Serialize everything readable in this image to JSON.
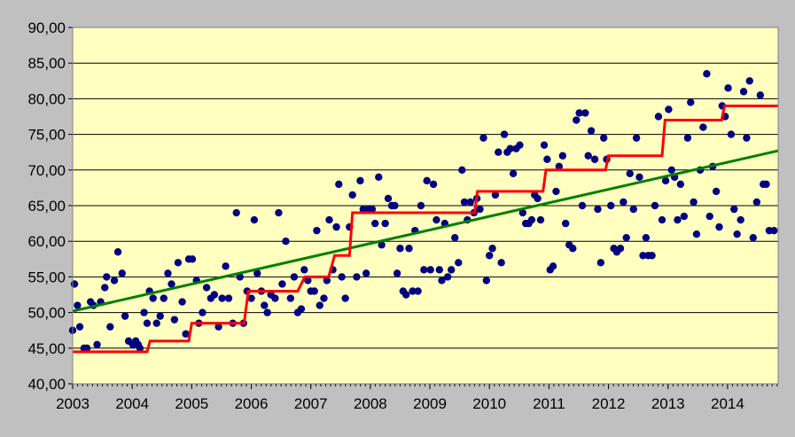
{
  "chart_data": {
    "type": "scatter",
    "title": "",
    "xlabel": "",
    "ylabel": "",
    "xlim": [
      2003.0,
      2014.85
    ],
    "ylim": [
      40,
      90
    ],
    "y_ticks": [
      "40,00",
      "45,00",
      "50,00",
      "55,00",
      "60,00",
      "65,00",
      "70,00",
      "75,00",
      "80,00",
      "85,00",
      "90,00"
    ],
    "x_ticks": [
      {
        "value": 2003,
        "label": "2003"
      },
      {
        "value": 2004,
        "label": "2004"
      },
      {
        "value": 2005,
        "label": "2005"
      },
      {
        "value": 2006,
        "label": "2006"
      },
      {
        "value": 2007,
        "label": "2007"
      },
      {
        "value": 2008,
        "label": "2008"
      },
      {
        "value": 2009,
        "label": "2009"
      },
      {
        "value": 2010,
        "label": "2010"
      },
      {
        "value": 2011,
        "label": "2011"
      },
      {
        "value": 2012,
        "label": "2012"
      },
      {
        "value": 2013,
        "label": "2013"
      },
      {
        "value": 2014,
        "label": "2014"
      }
    ],
    "grid": {
      "horizontal": true,
      "vertical": false
    },
    "legend": "none",
    "colors": {
      "plot_background": "#ffffc0",
      "points": "#000080",
      "trend": "#008000",
      "step": "#ff0000",
      "gridline": "#000000",
      "outer_background": "#c0c0c0"
    },
    "series": [
      {
        "kind": "points",
        "points": [
          [
            2003.0,
            47.5
          ],
          [
            2003.03,
            54.0
          ],
          [
            2003.08,
            51.0
          ],
          [
            2003.12,
            48.0
          ],
          [
            2003.19,
            45.0
          ],
          [
            2003.24,
            45.0
          ],
          [
            2003.3,
            51.5
          ],
          [
            2003.35,
            51.0
          ],
          [
            2003.41,
            45.5
          ],
          [
            2003.47,
            51.5
          ],
          [
            2003.54,
            53.5
          ],
          [
            2003.57,
            55.0
          ],
          [
            2003.63,
            48.0
          ],
          [
            2003.7,
            54.5
          ],
          [
            2003.76,
            58.5
          ],
          [
            2003.83,
            55.5
          ],
          [
            2003.88,
            49.5
          ],
          [
            2003.94,
            46.0
          ],
          [
            2004.01,
            45.5
          ],
          [
            2004.06,
            46.0
          ],
          [
            2004.1,
            45.5
          ],
          [
            2004.13,
            45.0
          ],
          [
            2004.2,
            50.0
          ],
          [
            2004.25,
            48.5
          ],
          [
            2004.29,
            53.0
          ],
          [
            2004.35,
            52.0
          ],
          [
            2004.41,
            48.5
          ],
          [
            2004.47,
            49.5
          ],
          [
            2004.53,
            52.0
          ],
          [
            2004.6,
            55.5
          ],
          [
            2004.66,
            54.0
          ],
          [
            2004.71,
            49.0
          ],
          [
            2004.77,
            57.0
          ],
          [
            2004.84,
            51.5
          ],
          [
            2004.9,
            47.0
          ],
          [
            2004.95,
            57.5
          ],
          [
            2005.01,
            57.5
          ],
          [
            2005.08,
            54.5
          ],
          [
            2005.12,
            48.5
          ],
          [
            2005.18,
            50.0
          ],
          [
            2005.25,
            53.5
          ],
          [
            2005.32,
            52.0
          ],
          [
            2005.38,
            52.5
          ],
          [
            2005.45,
            48.0
          ],
          [
            2005.51,
            52.0
          ],
          [
            2005.57,
            56.5
          ],
          [
            2005.62,
            52.0
          ],
          [
            2005.69,
            48.5
          ],
          [
            2005.75,
            64.0
          ],
          [
            2005.81,
            55.0
          ],
          [
            2005.87,
            48.5
          ],
          [
            2005.93,
            53.0
          ],
          [
            2006.0,
            52.0
          ],
          [
            2006.05,
            63.0
          ],
          [
            2006.1,
            55.5
          ],
          [
            2006.17,
            53.0
          ],
          [
            2006.22,
            51.0
          ],
          [
            2006.27,
            50.0
          ],
          [
            2006.33,
            52.5
          ],
          [
            2006.4,
            52.0
          ],
          [
            2006.46,
            64.0
          ],
          [
            2006.52,
            54.0
          ],
          [
            2006.58,
            60.0
          ],
          [
            2006.66,
            52.0
          ],
          [
            2006.72,
            55.0
          ],
          [
            2006.78,
            50.0
          ],
          [
            2006.84,
            50.5
          ],
          [
            2006.89,
            56.0
          ],
          [
            2006.95,
            54.5
          ],
          [
            2007.0,
            53.0
          ],
          [
            2007.06,
            53.0
          ],
          [
            2007.1,
            61.5
          ],
          [
            2007.15,
            51.0
          ],
          [
            2007.22,
            52.0
          ],
          [
            2007.27,
            54.5
          ],
          [
            2007.31,
            63.0
          ],
          [
            2007.37,
            56.0
          ],
          [
            2007.43,
            62.0
          ],
          [
            2007.47,
            68.0
          ],
          [
            2007.52,
            55.0
          ],
          [
            2007.58,
            52.0
          ],
          [
            2007.65,
            62.0
          ],
          [
            2007.7,
            66.5
          ],
          [
            2007.77,
            55.0
          ],
          [
            2007.83,
            68.5
          ],
          [
            2007.88,
            64.5
          ],
          [
            2007.93,
            55.5
          ],
          [
            2007.97,
            64.5
          ],
          [
            2008.03,
            64.5
          ],
          [
            2008.08,
            62.5
          ],
          [
            2008.14,
            69.0
          ],
          [
            2008.19,
            59.5
          ],
          [
            2008.25,
            62.5
          ],
          [
            2008.3,
            66.0
          ],
          [
            2008.36,
            65.0
          ],
          [
            2008.41,
            65.0
          ],
          [
            2008.45,
            55.5
          ],
          [
            2008.5,
            59.0
          ],
          [
            2008.55,
            53.0
          ],
          [
            2008.6,
            52.5
          ],
          [
            2008.65,
            59.0
          ],
          [
            2008.71,
            53.0
          ],
          [
            2008.75,
            61.5
          ],
          [
            2008.8,
            53.0
          ],
          [
            2008.85,
            65.0
          ],
          [
            2008.9,
            56.0
          ],
          [
            2008.95,
            68.5
          ],
          [
            2009.01,
            56.0
          ],
          [
            2009.06,
            68.0
          ],
          [
            2009.11,
            63.0
          ],
          [
            2009.16,
            56.0
          ],
          [
            2009.2,
            54.5
          ],
          [
            2009.25,
            62.5
          ],
          [
            2009.3,
            55.0
          ],
          [
            2009.36,
            56.0
          ],
          [
            2009.42,
            60.5
          ],
          [
            2009.48,
            57.0
          ],
          [
            2009.54,
            70.0
          ],
          [
            2009.58,
            65.5
          ],
          [
            2009.63,
            63.0
          ],
          [
            2009.68,
            65.5
          ],
          [
            2009.74,
            64.0
          ],
          [
            2009.79,
            66.0
          ],
          [
            2009.84,
            64.5
          ],
          [
            2009.9,
            74.5
          ],
          [
            2009.95,
            54.5
          ],
          [
            2010.0,
            58.0
          ],
          [
            2010.05,
            59.0
          ],
          [
            2010.1,
            66.5
          ],
          [
            2010.15,
            72.5
          ],
          [
            2010.2,
            57.0
          ],
          [
            2010.25,
            75.0
          ],
          [
            2010.3,
            72.5
          ],
          [
            2010.35,
            73.0
          ],
          [
            2010.4,
            69.5
          ],
          [
            2010.45,
            73.0
          ],
          [
            2010.51,
            73.5
          ],
          [
            2010.56,
            64.0
          ],
          [
            2010.61,
            62.5
          ],
          [
            2010.66,
            62.5
          ],
          [
            2010.71,
            63.0
          ],
          [
            2010.76,
            66.5
          ],
          [
            2010.81,
            66.0
          ],
          [
            2010.86,
            63.0
          ],
          [
            2010.92,
            73.5
          ],
          [
            2010.97,
            71.5
          ],
          [
            2011.02,
            56.0
          ],
          [
            2011.07,
            56.5
          ],
          [
            2011.12,
            67.0
          ],
          [
            2011.17,
            70.5
          ],
          [
            2011.23,
            72.0
          ],
          [
            2011.28,
            62.5
          ],
          [
            2011.34,
            59.5
          ],
          [
            2011.4,
            59.0
          ],
          [
            2011.46,
            77.0
          ],
          [
            2011.51,
            78.0
          ],
          [
            2011.56,
            65.0
          ],
          [
            2011.61,
            78.0
          ],
          [
            2011.66,
            72.0
          ],
          [
            2011.71,
            75.5
          ],
          [
            2011.77,
            71.5
          ],
          [
            2011.82,
            64.5
          ],
          [
            2011.87,
            57.0
          ],
          [
            2011.92,
            74.5
          ],
          [
            2011.97,
            71.5
          ],
          [
            2012.04,
            65.0
          ],
          [
            2012.09,
            59.0
          ],
          [
            2012.14,
            58.5
          ],
          [
            2012.2,
            59.0
          ],
          [
            2012.25,
            65.5
          ],
          [
            2012.3,
            60.5
          ],
          [
            2012.36,
            69.5
          ],
          [
            2012.42,
            64.5
          ],
          [
            2012.47,
            74.5
          ],
          [
            2012.52,
            69.0
          ],
          [
            2012.58,
            58.0
          ],
          [
            2012.63,
            60.5
          ],
          [
            2012.67,
            58.0
          ],
          [
            2012.73,
            58.0
          ],
          [
            2012.78,
            65.0
          ],
          [
            2012.84,
            77.5
          ],
          [
            2012.9,
            63.0
          ],
          [
            2012.96,
            68.5
          ],
          [
            2013.01,
            78.5
          ],
          [
            2013.06,
            70.0
          ],
          [
            2013.11,
            69.0
          ],
          [
            2013.16,
            63.0
          ],
          [
            2013.21,
            68.0
          ],
          [
            2013.27,
            63.5
          ],
          [
            2013.33,
            74.5
          ],
          [
            2013.38,
            79.5
          ],
          [
            2013.43,
            65.5
          ],
          [
            2013.48,
            61.0
          ],
          [
            2013.54,
            70.0
          ],
          [
            2013.59,
            76.0
          ],
          [
            2013.65,
            83.5
          ],
          [
            2013.7,
            63.5
          ],
          [
            2013.75,
            70.5
          ],
          [
            2013.81,
            67.0
          ],
          [
            2013.86,
            62.0
          ],
          [
            2013.91,
            79.0
          ],
          [
            2013.96,
            77.5
          ],
          [
            2014.01,
            81.5
          ],
          [
            2014.06,
            75.0
          ],
          [
            2014.11,
            64.5
          ],
          [
            2014.16,
            61.0
          ],
          [
            2014.22,
            63.0
          ],
          [
            2014.27,
            81.0
          ],
          [
            2014.32,
            74.5
          ],
          [
            2014.37,
            82.5
          ],
          [
            2014.43,
            60.5
          ],
          [
            2014.49,
            65.5
          ],
          [
            2014.55,
            80.5
          ],
          [
            2014.6,
            68.0
          ],
          [
            2014.65,
            68.0
          ],
          [
            2014.7,
            61.5
          ],
          [
            2014.78,
            61.5
          ]
        ]
      },
      {
        "kind": "trend",
        "line": [
          [
            2003.0,
            50.2
          ],
          [
            2014.85,
            72.7
          ]
        ]
      },
      {
        "kind": "step",
        "steps": [
          [
            2003.0,
            44.5
          ],
          [
            2004.25,
            44.5
          ],
          [
            2004.3,
            46.0
          ],
          [
            2004.95,
            46.0
          ],
          [
            2005.0,
            48.5
          ],
          [
            2005.88,
            48.5
          ],
          [
            2005.95,
            53.0
          ],
          [
            2006.78,
            53.0
          ],
          [
            2006.9,
            55.0
          ],
          [
            2007.3,
            55.0
          ],
          [
            2007.4,
            58.0
          ],
          [
            2007.65,
            58.0
          ],
          [
            2007.7,
            64.0
          ],
          [
            2009.75,
            64.0
          ],
          [
            2009.8,
            67.0
          ],
          [
            2010.9,
            67.0
          ],
          [
            2010.95,
            70.0
          ],
          [
            2011.95,
            70.0
          ],
          [
            2012.0,
            72.0
          ],
          [
            2012.9,
            72.0
          ],
          [
            2012.95,
            77.0
          ],
          [
            2013.9,
            77.0
          ],
          [
            2013.95,
            79.0
          ],
          [
            2014.85,
            79.0
          ]
        ]
      }
    ]
  }
}
